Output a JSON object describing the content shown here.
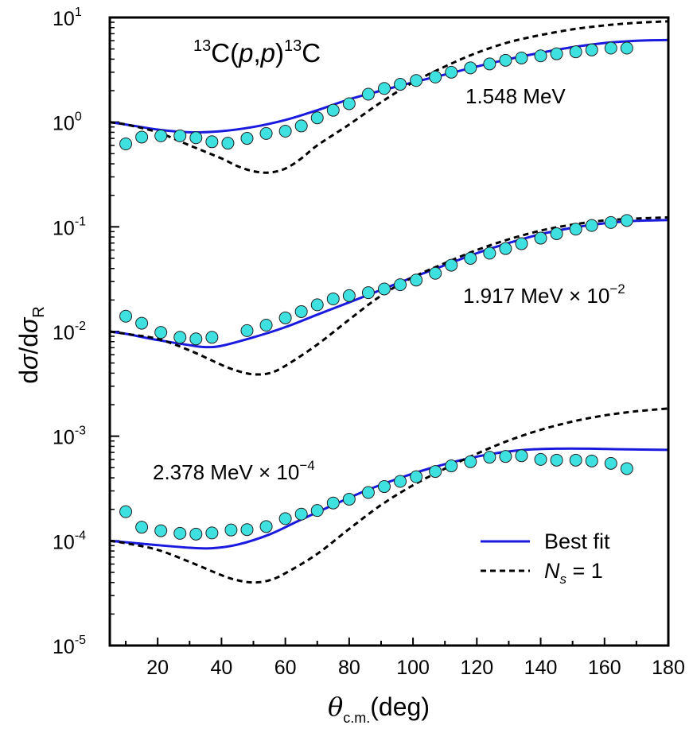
{
  "chart_data": {
    "type": "line",
    "title_parts": {
      "mass_pre": "13",
      "pre": "C(",
      "p1": "p",
      "comma": ",",
      "p2": "p",
      "close": ")",
      "mass_post": "13",
      "post": "C"
    },
    "xlabel": {
      "symbol": "θ",
      "subscript": "c.m.",
      "unit": "(deg)"
    },
    "ylabel": {
      "d1": "d",
      "s1": "σ",
      "slash": "/d",
      "s2": "σ",
      "sub": "R"
    },
    "x_scale": "linear",
    "y_scale": "log",
    "xlim": [
      5,
      180
    ],
    "ylim": [
      1e-05,
      10
    ],
    "x_ticks": [
      "20",
      "40",
      "60",
      "80",
      "100",
      "120",
      "140",
      "160",
      "180"
    ],
    "y_ticks": [
      {
        "base": "10",
        "exp": "1"
      },
      {
        "base": "10",
        "exp": "0"
      },
      {
        "base": "10",
        "exp": "-1"
      },
      {
        "base": "10",
        "exp": "-2"
      },
      {
        "base": "10",
        "exp": "-3"
      },
      {
        "base": "10",
        "exp": "-4"
      },
      {
        "base": "10",
        "exp": "-5"
      }
    ],
    "annotations": {
      "e1": "1.548 MeV",
      "e2": "1.917 MeV × 10",
      "e2_exp": "−2",
      "e3": "2.378 MeV × 10",
      "e3_exp": "−4"
    },
    "legend": {
      "position": "bottom-right",
      "best_fit": "Best fit",
      "ns_symbol": "N",
      "ns_sub": "s",
      "ns_value": " = 1"
    },
    "colors": {
      "best_fit": "#1a1adf",
      "ns1": "#000000",
      "points_fill": "#3fe0e0",
      "points_stroke": "#222222"
    },
    "series": [
      {
        "name": "Best fit",
        "energy": "1.548 MeV",
        "style": "solid",
        "x": [
          5,
          10,
          20,
          30,
          40,
          50,
          60,
          70,
          80,
          90,
          100,
          110,
          120,
          130,
          140,
          150,
          160,
          170,
          180
        ],
        "y": [
          1.0,
          0.95,
          0.85,
          0.8,
          0.82,
          0.9,
          1.05,
          1.3,
          1.65,
          2.0,
          2.4,
          2.85,
          3.4,
          4.0,
          4.6,
          5.2,
          5.7,
          6.0,
          6.1
        ]
      },
      {
        "name": "N_s = 1",
        "energy": "1.548 MeV",
        "style": "dashed",
        "x": [
          5,
          10,
          20,
          30,
          40,
          45,
          50,
          55,
          60,
          65,
          70,
          80,
          90,
          100,
          110,
          120,
          130,
          140,
          150,
          160,
          170,
          180
        ],
        "y": [
          1.0,
          0.95,
          0.8,
          0.6,
          0.45,
          0.38,
          0.34,
          0.33,
          0.36,
          0.45,
          0.6,
          0.95,
          1.55,
          2.4,
          3.4,
          4.6,
          5.8,
          6.8,
          7.7,
          8.4,
          8.9,
          9.2
        ]
      },
      {
        "name": "data",
        "energy": "1.548 MeV",
        "style": "points",
        "x": [
          10,
          15,
          21,
          27,
          32,
          37,
          42,
          48,
          54,
          60,
          65,
          70,
          75,
          80,
          86,
          91,
          96,
          101,
          107,
          112,
          118,
          124,
          129,
          134,
          140,
          145,
          151,
          156,
          162,
          167
        ],
        "y": [
          0.62,
          0.72,
          0.74,
          0.74,
          0.71,
          0.65,
          0.63,
          0.7,
          0.78,
          0.82,
          0.92,
          1.1,
          1.3,
          1.5,
          1.85,
          2.1,
          2.3,
          2.5,
          2.7,
          3.0,
          3.3,
          3.6,
          3.9,
          4.1,
          4.3,
          4.5,
          4.7,
          4.9,
          5.1,
          5.1
        ]
      },
      {
        "name": "Best fit",
        "energy": "1.917 MeV × 10^-2",
        "style": "solid",
        "x": [
          5,
          10,
          20,
          30,
          35,
          40,
          50,
          60,
          70,
          80,
          90,
          100,
          110,
          120,
          130,
          140,
          150,
          160,
          170,
          180
        ],
        "y": [
          0.01,
          0.0095,
          0.0083,
          0.0074,
          0.0071,
          0.0073,
          0.0088,
          0.011,
          0.0145,
          0.019,
          0.025,
          0.033,
          0.043,
          0.056,
          0.07,
          0.085,
          0.098,
          0.108,
          0.114,
          0.116
        ]
      },
      {
        "name": "N_s = 1",
        "energy": "1.917 MeV × 10^-2",
        "style": "dashed",
        "x": [
          5,
          10,
          20,
          30,
          40,
          45,
          50,
          55,
          60,
          70,
          80,
          90,
          100,
          110,
          120,
          130,
          140,
          150,
          160,
          170,
          180
        ],
        "y": [
          0.01,
          0.0095,
          0.0085,
          0.0066,
          0.0048,
          0.0042,
          0.0039,
          0.004,
          0.0047,
          0.0075,
          0.013,
          0.022,
          0.033,
          0.045,
          0.06,
          0.076,
          0.092,
          0.105,
          0.115,
          0.12,
          0.123
        ]
      },
      {
        "name": "data",
        "energy": "1.917 MeV × 10^-2",
        "style": "points",
        "x": [
          10,
          15,
          21,
          27,
          32,
          37,
          48,
          54,
          60,
          65,
          70,
          75,
          80,
          86,
          91,
          96,
          101,
          107,
          112,
          118,
          124,
          129,
          134,
          140,
          145,
          151,
          156,
          162,
          167
        ],
        "y": [
          0.014,
          0.012,
          0.0098,
          0.0088,
          0.0085,
          0.0088,
          0.0102,
          0.0115,
          0.0135,
          0.0155,
          0.018,
          0.0205,
          0.022,
          0.0235,
          0.0255,
          0.028,
          0.031,
          0.036,
          0.043,
          0.05,
          0.056,
          0.062,
          0.069,
          0.078,
          0.086,
          0.095,
          0.103,
          0.11,
          0.115
        ]
      },
      {
        "name": "Best fit",
        "energy": "2.378 MeV × 10^-4",
        "style": "solid",
        "x": [
          5,
          10,
          20,
          30,
          37,
          45,
          55,
          65,
          75,
          85,
          95,
          105,
          115,
          125,
          135,
          145,
          155,
          165,
          180
        ],
        "y": [
          0.0001,
          9.7e-05,
          9.1e-05,
          8.6e-05,
          8.5e-05,
          9.2e-05,
          0.000115,
          0.00016,
          0.00022,
          0.0003,
          0.00039,
          0.00049,
          0.00059,
          0.00068,
          0.00074,
          0.00076,
          0.00076,
          0.00075,
          0.00074
        ]
      },
      {
        "name": "N_s = 1",
        "energy": "2.378 MeV × 10^-4",
        "style": "dashed",
        "x": [
          5,
          10,
          20,
          30,
          40,
          45,
          50,
          55,
          60,
          70,
          80,
          90,
          100,
          110,
          120,
          130,
          140,
          150,
          160,
          170,
          180
        ],
        "y": [
          0.0001,
          9.5e-05,
          8.2e-05,
          6.3e-05,
          4.7e-05,
          4.2e-05,
          4e-05,
          4.2e-05,
          4.9e-05,
          7.5e-05,
          0.00013,
          0.00022,
          0.00034,
          0.00049,
          0.00068,
          0.00091,
          0.00115,
          0.00138,
          0.00158,
          0.00173,
          0.00184
        ]
      },
      {
        "name": "data",
        "energy": "2.378 MeV × 10^-4",
        "style": "points",
        "x": [
          10,
          15,
          21,
          27,
          32,
          37,
          43,
          48,
          54,
          60,
          65,
          70,
          75,
          80,
          86,
          91,
          96,
          101,
          107,
          112,
          118,
          124,
          129,
          134,
          140,
          145,
          151,
          156,
          162,
          167
        ],
        "y": [
          0.00019,
          0.000135,
          0.000125,
          0.000118,
          0.000116,
          0.000119,
          0.000127,
          0.000128,
          0.000137,
          0.000163,
          0.00018,
          0.000195,
          0.00023,
          0.00025,
          0.00029,
          0.00033,
          0.00037,
          0.00041,
          0.00046,
          0.00052,
          0.00057,
          0.00063,
          0.00064,
          0.00065,
          0.0006,
          0.00059,
          0.00059,
          0.00058,
          0.00055,
          0.00049
        ]
      }
    ]
  }
}
